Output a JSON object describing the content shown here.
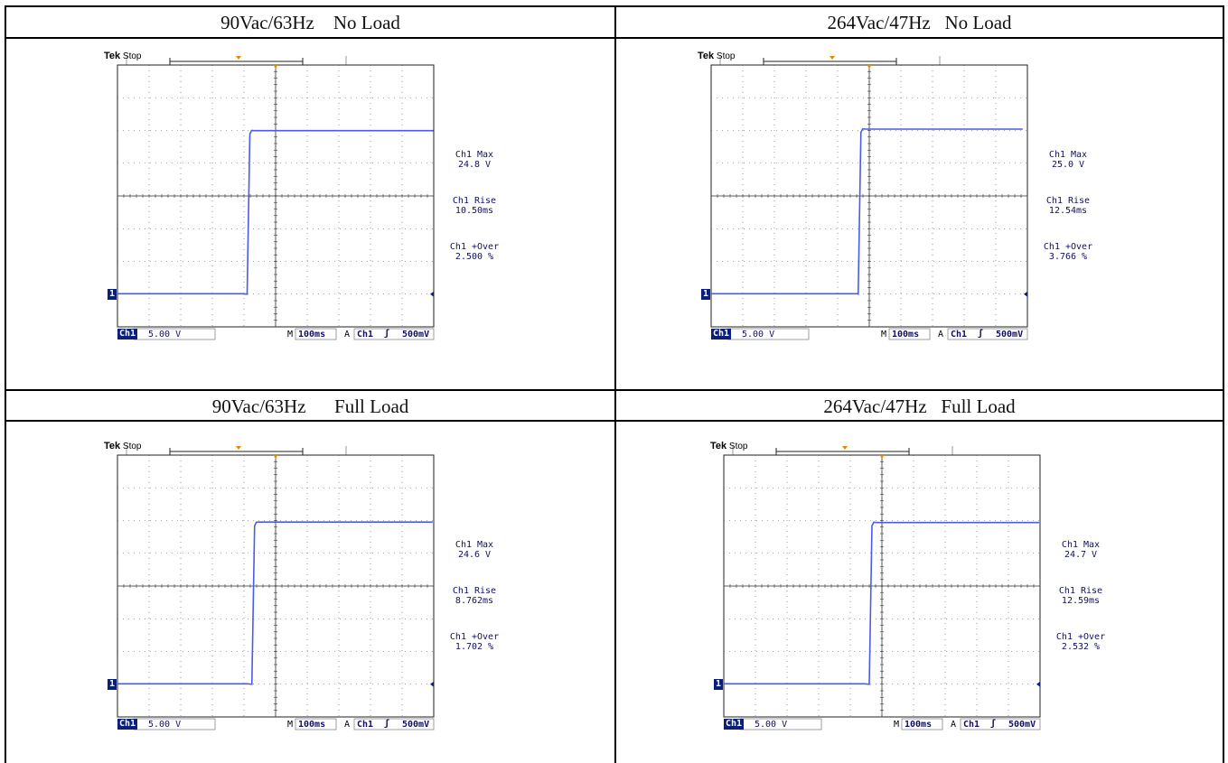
{
  "panels": [
    {
      "header": "90Vac/63Hz    No Load",
      "status": "Stop",
      "brand": "Tek",
      "measurements": [
        {
          "label": "Ch1 Max",
          "value": "24.8 V"
        },
        {
          "label": "Ch1 Rise",
          "value": "10.50ms"
        },
        {
          "label": "Ch1 +Over",
          "value": "2.500 %"
        }
      ],
      "ch_badge": "Ch1",
      "ch_scale": "5.00 V",
      "time_scale": "100ms",
      "trigger": "Ch1",
      "trigger_level": "500mV",
      "m_label": "M",
      "a_label": "A",
      "marker": "1"
    },
    {
      "header": "264Vac/47Hz   No Load",
      "status": "Stop",
      "brand": "Tek",
      "measurements": [
        {
          "label": "Ch1 Max",
          "value": "25.0 V"
        },
        {
          "label": "Ch1 Rise",
          "value": "12.54ms"
        },
        {
          "label": "Ch1 +Over",
          "value": "3.766 %"
        }
      ],
      "ch_badge": "Ch1",
      "ch_scale": "5.00 V",
      "time_scale": "100ms",
      "trigger": "Ch1",
      "trigger_level": "500mV",
      "m_label": "M",
      "a_label": "A",
      "marker": "1"
    },
    {
      "header": "90Vac/63Hz      Full Load",
      "status": "Stop",
      "brand": "Tek",
      "measurements": [
        {
          "label": "Ch1 Max",
          "value": "24.6 V"
        },
        {
          "label": "Ch1 Rise",
          "value": "8.762ms"
        },
        {
          "label": "Ch1 +Over",
          "value": "1.702 %"
        }
      ],
      "ch_badge": "Ch1",
      "ch_scale": "5.00 V",
      "time_scale": "100ms",
      "trigger": "Ch1",
      "trigger_level": "500mV",
      "m_label": "M",
      "a_label": "A",
      "marker": "1"
    },
    {
      "header": "264Vac/47Hz   Full Load",
      "status": "Stop",
      "brand": "Tek",
      "measurements": [
        {
          "label": "Ch1 Max",
          "value": "24.7 V"
        },
        {
          "label": "Ch1 Rise",
          "value": "12.59ms"
        },
        {
          "label": "Ch1 +Over",
          "value": "2.532 %"
        }
      ],
      "ch_badge": "Ch1",
      "ch_scale": "5.00 V",
      "time_scale": "100ms",
      "trigger": "Ch1",
      "trigger_level": "500mV",
      "m_label": "M",
      "a_label": "A",
      "marker": "1"
    }
  ],
  "colors": {
    "trace": "#4a5be6",
    "grid": "#555555",
    "trigger_marker": "#e08a00",
    "badge": "#0a1f7a"
  },
  "chart_data": [
    {
      "type": "line",
      "title": "90Vac/63Hz    No Load",
      "xlabel": "",
      "ylabel": "",
      "x_divisions": 10,
      "y_divisions": 8,
      "step_division": 4.1,
      "low_div": 1.0,
      "high_div": 6.0,
      "series": [
        {
          "values": [
            0,
            0,
            24.8
          ]
        }
      ]
    },
    {
      "type": "line",
      "title": "264Vac/47Hz   No Load",
      "xlabel": "",
      "ylabel": "",
      "x_divisions": 10,
      "y_divisions": 8,
      "step_division": 4.65,
      "low_div": 1.0,
      "high_div": 6.05,
      "series": [
        {
          "values": [
            0,
            0,
            25.0
          ]
        }
      ]
    },
    {
      "type": "line",
      "title": "90Vac/63Hz      Full Load",
      "xlabel": "",
      "ylabel": "",
      "x_divisions": 10,
      "y_divisions": 8,
      "step_division": 4.25,
      "low_div": 1.0,
      "high_div": 5.95,
      "series": [
        {
          "values": [
            0,
            0,
            24.6
          ]
        }
      ]
    },
    {
      "type": "line",
      "title": "264Vac/47Hz   Full Load",
      "xlabel": "",
      "ylabel": "",
      "x_divisions": 10,
      "y_divisions": 8,
      "step_division": 4.6,
      "low_div": 1.0,
      "high_div": 5.95,
      "series": [
        {
          "values": [
            0,
            0,
            24.7
          ]
        }
      ]
    }
  ]
}
